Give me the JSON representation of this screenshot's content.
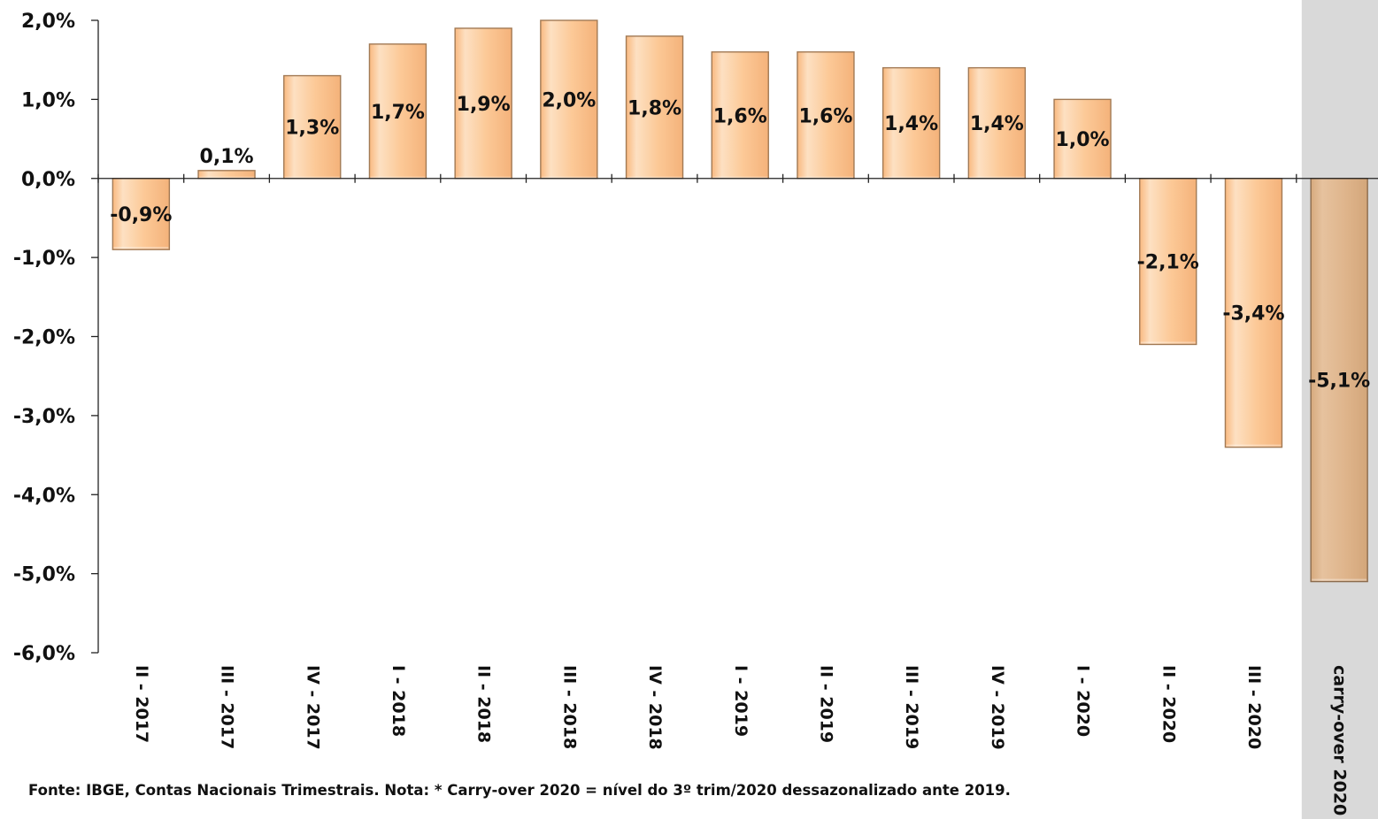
{
  "chart_data": {
    "type": "bar",
    "categories": [
      "II - 2017",
      "III - 2017",
      "IV - 2017",
      "I - 2018",
      "II - 2018",
      "III - 2018",
      "IV - 2018",
      "I - 2019",
      "II - 2019",
      "III - 2019",
      "IV - 2019",
      "I - 2020",
      "II - 2020",
      "III - 2020",
      "carry-over 2020"
    ],
    "values": [
      -0.9,
      0.1,
      1.3,
      1.7,
      1.9,
      2.0,
      1.8,
      1.6,
      1.6,
      1.4,
      1.4,
      1.0,
      -2.1,
      -3.4,
      -5.1
    ],
    "data_labels": [
      "-0,9%",
      "0,1%",
      "1,3%",
      "1,7%",
      "1,9%",
      "2,0%",
      "1,8%",
      "1,6%",
      "1,6%",
      "1,4%",
      "1,4%",
      "1,0%",
      "-2,1%",
      "-3,4%",
      "-5,1%"
    ],
    "y_ticks": [
      2.0,
      1.0,
      0.0,
      -1.0,
      -2.0,
      -3.0,
      -4.0,
      -5.0,
      -6.0
    ],
    "y_tick_labels": [
      "2,0%",
      "1,0%",
      "0,0%",
      "-1,0%",
      "-2,0%",
      "-3,0%",
      "-4,0%",
      "-5,0%",
      "-6,0%"
    ],
    "ylim": [
      -6.0,
      2.0
    ],
    "title": "",
    "xlabel": "",
    "ylabel": "",
    "grid": false,
    "legend": "none",
    "highlight_category": "carry-over 2020",
    "colors": {
      "bar_fill": "#fcc997",
      "bar_fill_light": "#fde3c6",
      "bar_stroke": "#a27a55",
      "highlight_bar_fill": "#dfb58c",
      "highlight_bar_stroke": "#8b6b4d",
      "highlight_band": "#d9d9d9",
      "axis": "#222222"
    }
  },
  "footnote": "Fonte: IBGE, Contas Nacionais Trimestrais.  Nota: * Carry-over 2020 =  nível do 3º trim/2020 dessazonalizado ante 2019."
}
